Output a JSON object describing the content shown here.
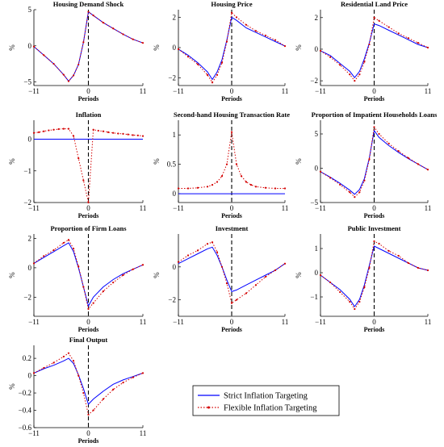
{
  "figure": {
    "legend": [
      {
        "label": "Strict Inflation Targeting",
        "color": "#0000ff",
        "style": "solid"
      },
      {
        "label": "Flexible Inflation Targeting",
        "color": "#d40000",
        "style": "dotted-marker"
      }
    ],
    "colors": {
      "strict": "#0000ff",
      "flexible": "#d40000",
      "axis": "#000000",
      "shock_line": "#000000"
    }
  },
  "chart_data": [
    {
      "type": "line",
      "title": "Housing Demand Shock",
      "xlabel": "Periods",
      "ylabel": "%",
      "xlim": [
        -11,
        11
      ],
      "ylim": [
        -5.5,
        5
      ],
      "xticks": [
        -11,
        0,
        11
      ],
      "yticks": [
        -5,
        0,
        5
      ],
      "series": [
        {
          "name": "Strict Inflation Targeting",
          "x": [
            -11,
            -9,
            -7,
            -5,
            -4,
            -3,
            -2,
            -1,
            0,
            1,
            3,
            5,
            7,
            9,
            11
          ],
          "y": [
            -0.1,
            -1.3,
            -2.5,
            -4,
            -4.9,
            -4.1,
            -2.6,
            0.5,
            4.7,
            4.2,
            3.2,
            2.4,
            1.6,
            0.9,
            0.4
          ]
        },
        {
          "name": "Flexible Inflation Targeting",
          "x": [
            -11,
            -9,
            -7,
            -5,
            -4,
            -3,
            -2,
            -1,
            0,
            1,
            3,
            5,
            7,
            9,
            11
          ],
          "y": [
            -0.1,
            -1.3,
            -2.5,
            -4,
            -4.9,
            -4.1,
            -2.6,
            0.5,
            4.7,
            4.2,
            3.2,
            2.4,
            1.6,
            0.9,
            0.4
          ]
        }
      ]
    },
    {
      "type": "line",
      "title": "Housing Price",
      "xlabel": "Periods",
      "ylabel": "%",
      "xlim": [
        -11,
        11
      ],
      "ylim": [
        -2.5,
        2.5
      ],
      "xticks": [
        -11,
        0,
        11
      ],
      "yticks": [
        -2,
        0,
        2
      ],
      "series": [
        {
          "name": "Strict Inflation Targeting",
          "x": [
            -11,
            -9,
            -7,
            -5,
            -4,
            -3,
            -2,
            -1,
            0,
            1,
            3,
            5,
            7,
            9,
            11
          ],
          "y": [
            -0.1,
            -0.5,
            -1,
            -1.6,
            -2.1,
            -1.6,
            -0.8,
            0.5,
            2,
            1.8,
            1.3,
            1,
            0.7,
            0.4,
            0.1
          ]
        },
        {
          "name": "Flexible Inflation Targeting",
          "x": [
            -11,
            -9,
            -7,
            -5,
            -4,
            -3,
            -2,
            -1,
            0,
            1,
            3,
            5,
            7,
            9,
            11
          ],
          "y": [
            -0.1,
            -0.6,
            -1.1,
            -1.8,
            -2.3,
            -1.8,
            -1,
            0.4,
            2.3,
            2,
            1.5,
            1.1,
            0.8,
            0.5,
            0.1
          ]
        }
      ]
    },
    {
      "type": "line",
      "title": "Residential Land Price",
      "xlabel": "Periods",
      "ylabel": "%",
      "xlim": [
        -11,
        11
      ],
      "ylim": [
        -2.3,
        2.5
      ],
      "xticks": [
        -11,
        0,
        11
      ],
      "yticks": [
        -2,
        0,
        2
      ],
      "series": [
        {
          "name": "Strict Inflation Targeting",
          "x": [
            -11,
            -9,
            -7,
            -5,
            -4,
            -3,
            -2,
            -1,
            0,
            1,
            3,
            5,
            7,
            9,
            11
          ],
          "y": [
            -0.1,
            -0.4,
            -0.9,
            -1.4,
            -1.8,
            -1.4,
            -0.6,
            0.4,
            1.6,
            1.5,
            1.2,
            0.9,
            0.6,
            0.3,
            0.1
          ]
        },
        {
          "name": "Flexible Inflation Targeting",
          "x": [
            -11,
            -9,
            -7,
            -5,
            -4,
            -3,
            -2,
            -1,
            0,
            1,
            3,
            5,
            7,
            9,
            11
          ],
          "y": [
            -0.1,
            -0.5,
            -1,
            -1.6,
            -2,
            -1.6,
            -0.8,
            0.3,
            2,
            1.8,
            1.4,
            1,
            0.7,
            0.4,
            0.1
          ]
        }
      ]
    },
    {
      "type": "line",
      "title": "Inflation",
      "xlabel": "Periods",
      "ylabel": "%",
      "xlim": [
        -11,
        11
      ],
      "ylim": [
        -2,
        0.6
      ],
      "xticks": [
        -11,
        0,
        11
      ],
      "yticks": [
        -2,
        -1,
        0
      ],
      "series": [
        {
          "name": "Strict Inflation Targeting",
          "x": [
            -11,
            11
          ],
          "y": [
            0,
            0
          ]
        },
        {
          "name": "Flexible Inflation Targeting",
          "x": [
            -11,
            -10,
            -9,
            -8,
            -7,
            -6,
            -5,
            -4,
            -3,
            -2,
            -1,
            0,
            1,
            2,
            3,
            4,
            5,
            6,
            7,
            8,
            9,
            10,
            11
          ],
          "y": [
            0.2,
            0.22,
            0.25,
            0.28,
            0.3,
            0.32,
            0.33,
            0.33,
            0.1,
            -0.6,
            -1.3,
            -2,
            0.3,
            0.27,
            0.25,
            0.22,
            0.2,
            0.18,
            0.17,
            0.15,
            0.13,
            0.12,
            0.1
          ]
        }
      ]
    },
    {
      "type": "line",
      "title": "Second-hand Housing Transaction Rate",
      "xlabel": "Periods",
      "ylabel": "%",
      "xlim": [
        -11,
        11
      ],
      "ylim": [
        -0.15,
        1.25
      ],
      "xticks": [
        -11,
        0,
        11
      ],
      "yticks": [
        0,
        0.5,
        1
      ],
      "series": [
        {
          "name": "Strict Inflation Targeting",
          "x": [
            -11,
            11
          ],
          "y": [
            0,
            0
          ]
        },
        {
          "name": "Flexible Inflation Targeting",
          "x": [
            -11,
            -9,
            -7,
            -5,
            -4,
            -3,
            -2,
            -1,
            0,
            1,
            2,
            3,
            4,
            5,
            7,
            9,
            11
          ],
          "y": [
            0.09,
            0.09,
            0.1,
            0.12,
            0.15,
            0.2,
            0.3,
            0.5,
            1.05,
            0.5,
            0.3,
            0.2,
            0.15,
            0.12,
            0.1,
            0.09,
            0.09
          ]
        }
      ]
    },
    {
      "type": "line",
      "title": "Proportion of Impatient Households Loans",
      "xlabel": "Periods",
      "ylabel": "%",
      "xlim": [
        -11,
        11
      ],
      "ylim": [
        -5,
        7
      ],
      "xticks": [
        -11,
        0,
        11
      ],
      "yticks": [
        -5,
        0,
        5
      ],
      "series": [
        {
          "name": "Strict Inflation Targeting",
          "x": [
            -11,
            -9,
            -7,
            -5,
            -4,
            -3,
            -2,
            -1,
            0,
            1,
            3,
            5,
            7,
            9,
            11
          ],
          "y": [
            -0.5,
            -1.3,
            -2.2,
            -3.2,
            -3.8,
            -3.1,
            -1.5,
            1.5,
            5.5,
            4.5,
            3.3,
            2.3,
            1.4,
            0.6,
            -0.2
          ]
        },
        {
          "name": "Flexible Inflation Targeting",
          "x": [
            -11,
            -9,
            -7,
            -5,
            -4,
            -3,
            -2,
            -1,
            0,
            1,
            3,
            5,
            7,
            9,
            11
          ],
          "y": [
            -0.5,
            -1.4,
            -2.4,
            -3.5,
            -4.2,
            -3.5,
            -1.8,
            1.3,
            6,
            5,
            3.6,
            2.5,
            1.5,
            0.6,
            -0.2
          ]
        }
      ]
    },
    {
      "type": "line",
      "title": "Proportion of Firm Loans",
      "xlabel": "Periods",
      "ylabel": "%",
      "xlim": [
        -11,
        11
      ],
      "ylim": [
        -3.3,
        2.3
      ],
      "xticks": [
        -11,
        0,
        11
      ],
      "yticks": [
        -2,
        0,
        2
      ],
      "series": [
        {
          "name": "Strict Inflation Targeting",
          "x": [
            -11,
            -9,
            -7,
            -5,
            -4,
            -3,
            -2,
            -1,
            0,
            1,
            3,
            5,
            7,
            9,
            11
          ],
          "y": [
            0.3,
            0.7,
            1.1,
            1.5,
            1.7,
            1.1,
            0,
            -1.3,
            -2.6,
            -2,
            -1.3,
            -0.8,
            -0.4,
            -0.1,
            0.2
          ]
        },
        {
          "name": "Flexible Inflation Targeting",
          "x": [
            -11,
            -9,
            -7,
            -5,
            -4,
            -3,
            -2,
            -1,
            0,
            1,
            3,
            5,
            7,
            9,
            11
          ],
          "y": [
            0.3,
            0.8,
            1.2,
            1.7,
            1.9,
            1.3,
            0.1,
            -1.3,
            -2.8,
            -2.4,
            -1.6,
            -1,
            -0.5,
            -0.1,
            0.2
          ]
        }
      ]
    },
    {
      "type": "line",
      "title": "Investment",
      "xlabel": "Periods",
      "ylabel": "%",
      "xlim": [
        -11,
        11
      ],
      "ylim": [
        -3,
        2
      ],
      "xticks": [
        -11,
        0,
        11
      ],
      "yticks": [
        -2,
        0
      ],
      "series": [
        {
          "name": "Strict Inflation Targeting",
          "x": [
            -11,
            -9,
            -7,
            -5,
            -4,
            -3,
            -2,
            -1,
            0,
            1,
            3,
            5,
            7,
            9,
            11
          ],
          "y": [
            0.2,
            0.5,
            0.8,
            1.1,
            1.2,
            0.7,
            0,
            -0.8,
            -1.5,
            -1.4,
            -1.1,
            -0.8,
            -0.5,
            -0.2,
            0.2
          ]
        },
        {
          "name": "Flexible Inflation Targeting",
          "x": [
            -11,
            -9,
            -7,
            -5,
            -4,
            -3,
            -2,
            -1,
            0,
            1,
            3,
            5,
            7,
            9,
            11
          ],
          "y": [
            0.3,
            0.7,
            1,
            1.4,
            1.5,
            0.9,
            0,
            -1,
            -2.2,
            -2,
            -1.6,
            -1.1,
            -0.6,
            -0.2,
            0.2
          ]
        }
      ]
    },
    {
      "type": "line",
      "title": "Public Investment",
      "xlabel": "Periods",
      "ylabel": "%",
      "xlim": [
        -11,
        11
      ],
      "ylim": [
        -1.8,
        1.6
      ],
      "xticks": [
        -11,
        0,
        11
      ],
      "yticks": [
        -1,
        0,
        1
      ],
      "series": [
        {
          "name": "Strict Inflation Targeting",
          "x": [
            -11,
            -9,
            -7,
            -5,
            -4,
            -3,
            -2,
            -1,
            0,
            1,
            3,
            5,
            7,
            9,
            11
          ],
          "y": [
            -0.1,
            -0.4,
            -0.7,
            -1.1,
            -1.4,
            -1.1,
            -0.5,
            0.3,
            1.1,
            1,
            0.8,
            0.6,
            0.4,
            0.2,
            0.1
          ]
        },
        {
          "name": "Flexible Inflation Targeting",
          "x": [
            -11,
            -9,
            -7,
            -5,
            -4,
            -3,
            -2,
            -1,
            0,
            1,
            3,
            5,
            7,
            9,
            11
          ],
          "y": [
            -0.1,
            -0.4,
            -0.8,
            -1.2,
            -1.5,
            -1.2,
            -0.6,
            0.2,
            1.3,
            1.2,
            0.9,
            0.7,
            0.4,
            0.2,
            0.1
          ]
        }
      ]
    },
    {
      "type": "line",
      "title": "Final Output",
      "xlabel": "Periods",
      "ylabel": "%",
      "xlim": [
        -11,
        11
      ],
      "ylim": [
        -0.6,
        0.35
      ],
      "xticks": [
        -11,
        0,
        11
      ],
      "yticks": [
        -0.6,
        -0.4,
        -0.2,
        0,
        0.2
      ],
      "series": [
        {
          "name": "Strict Inflation Targeting",
          "x": [
            -11,
            -9,
            -7,
            -5,
            -4,
            -3,
            -2,
            -1,
            0,
            1,
            3,
            5,
            7,
            9,
            11
          ],
          "y": [
            0.03,
            0.08,
            0.12,
            0.17,
            0.2,
            0.14,
            0.01,
            -0.15,
            -0.33,
            -0.27,
            -0.18,
            -0.1,
            -0.05,
            -0.01,
            0.03
          ]
        },
        {
          "name": "Flexible Inflation Targeting",
          "x": [
            -11,
            -9,
            -7,
            -5,
            -4,
            -3,
            -2,
            -1,
            0,
            1,
            3,
            5,
            7,
            9,
            11
          ],
          "y": [
            0.03,
            0.09,
            0.15,
            0.22,
            0.26,
            0.17,
            0,
            -0.2,
            -0.45,
            -0.4,
            -0.27,
            -0.16,
            -0.08,
            -0.02,
            0.03
          ]
        }
      ]
    }
  ]
}
